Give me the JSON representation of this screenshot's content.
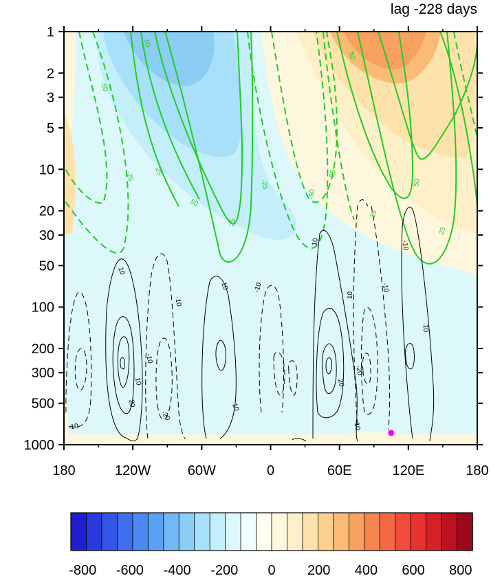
{
  "chart_data": {
    "type": "heatmap",
    "title": "lag -228 days",
    "x_tick_labels": [
      "180",
      "120W",
      "60W",
      "0",
      "60E",
      "120E",
      "180"
    ],
    "x_tick_values": [
      -180,
      -120,
      -60,
      0,
      60,
      120,
      180
    ],
    "y_tick_labels": [
      "1",
      "2",
      "3",
      "5",
      "10",
      "20",
      "30",
      "50",
      "100",
      "200",
      "300",
      "500",
      "1000"
    ],
    "y_tick_values": [
      1,
      2,
      3,
      5,
      10,
      20,
      30,
      50,
      100,
      200,
      300,
      500,
      1000
    ],
    "y_scale": "log",
    "y_inverted": true,
    "xlim": [
      -180,
      180
    ],
    "ylim": [
      1000,
      1
    ],
    "colorbar": {
      "tick_labels": [
        "-800",
        "-600",
        "-400",
        "-200",
        "0",
        "200",
        "400",
        "600",
        "800"
      ],
      "tick_values": [
        -800,
        -600,
        -400,
        -200,
        0,
        200,
        400,
        600,
        800
      ],
      "range": [
        -850,
        850
      ],
      "interval": 50,
      "colors": [
        "#1e1ed0",
        "#2a3ae0",
        "#3455e8",
        "#3f6eee",
        "#4b88f2",
        "#5ba2f4",
        "#72b8f5",
        "#8ccdf6",
        "#a7e0f8",
        "#c3eefa",
        "#dcf8fb",
        "#effdfc",
        "#fffef0",
        "#fef7de",
        "#fdefc8",
        "#fde3ab",
        "#fcd18f",
        "#fbbb76",
        "#f9a161",
        "#f78551",
        "#f56844",
        "#f14b3a",
        "#e73232",
        "#d42027",
        "#bc1220",
        "#9b0a1c"
      ]
    },
    "shaded_regions": [
      {
        "sign": "negative",
        "level": -100,
        "lon_range": [
          -175,
          20
        ],
        "p_range": [
          1,
          300
        ],
        "color": "#dcf8fb"
      },
      {
        "sign": "negative",
        "level": -200,
        "lon_range": [
          -150,
          -20
        ],
        "p_range": [
          1,
          30
        ],
        "color": "#a7e0f8"
      },
      {
        "sign": "negative",
        "level": -300,
        "lon_range": [
          -140,
          -30
        ],
        "p_range": [
          1,
          8
        ],
        "color": "#8ccdf6"
      },
      {
        "sign": "negative",
        "level": -400,
        "lon_range": [
          -125,
          -75
        ],
        "p_range": [
          1,
          2.5
        ],
        "color": "#72b8f5"
      },
      {
        "sign": "positive",
        "level": 100,
        "lon_range": [
          40,
          180
        ],
        "p_range": [
          1,
          30
        ],
        "color": "#fdefc8"
      },
      {
        "sign": "positive",
        "level": 200,
        "lon_range": [
          60,
          175
        ],
        "p_range": [
          1,
          12
        ],
        "color": "#fde3ab"
      },
      {
        "sign": "positive",
        "level": 300,
        "lon_range": [
          75,
          140
        ],
        "p_range": [
          1,
          3
        ],
        "color": "#fbbb76"
      }
    ],
    "green_contours": [
      {
        "level": -50,
        "style": "dashed",
        "lon_range": [
          -180,
          -150
        ],
        "label_lon": -150
      },
      {
        "level": -25,
        "style": "dashed",
        "lon_range": [
          -180,
          -150
        ],
        "label_lon": -124
      },
      {
        "level": 50,
        "style": "solid",
        "lon_range": [
          -115,
          -100
        ],
        "label_lon": -108
      },
      {
        "level": 25,
        "style": "solid",
        "lon_range": [
          -105,
          -60
        ],
        "label_lon": -98
      },
      {
        "level": 50,
        "style": "solid",
        "lon_range": [
          -80,
          -60
        ],
        "label_lon": -65
      },
      {
        "level": 25,
        "style": "solid",
        "lon_range": [
          -70,
          -30
        ],
        "label_lon": -30
      },
      {
        "level": -25,
        "style": "dashed",
        "lon_range": [
          -20,
          40
        ],
        "label_lon": 1
      },
      {
        "level": -50,
        "style": "dashed",
        "lon_range": [
          15,
          45
        ],
        "label_lon": 40
      },
      {
        "level": -25,
        "style": "dashed",
        "lon_range": [
          40,
          70
        ],
        "label_lon": 58
      },
      {
        "level": 50,
        "style": "solid",
        "lon_range": [
          70,
          112
        ],
        "label_lon": 72
      },
      {
        "level": 25,
        "style": "solid",
        "lon_range": [
          90,
          150
        ],
        "label_lon": 92
      },
      {
        "level": 50,
        "style": "solid",
        "lon_range": [
          128,
          150
        ],
        "label_lon": 130
      },
      {
        "level": 25,
        "style": "solid",
        "lon_range": [
          145,
          180
        ],
        "label_lon": 150
      }
    ],
    "black_contours": [
      {
        "level": -10,
        "style": "dashed",
        "center_lon": -165,
        "label_lon": -170
      },
      {
        "level": 10,
        "style": "solid",
        "center_lon": -128,
        "label_lon": -128
      },
      {
        "level": 20,
        "style": "solid",
        "center_lon": -128,
        "label_lon": -120
      },
      {
        "level": -10,
        "style": "dashed",
        "center_lon": -92,
        "label_lon": -96
      },
      {
        "level": -20,
        "style": "dashed",
        "center_lon": -92,
        "label_lon": -90
      },
      {
        "level": 10,
        "style": "solid",
        "center_lon": -45,
        "label_lon": -40
      },
      {
        "level": -10,
        "style": "dashed",
        "center_lon": 0,
        "label_lon": -2
      },
      {
        "level": 10,
        "style": "solid",
        "center_lon": 50,
        "label_lon": 44
      },
      {
        "level": 20,
        "style": "solid",
        "center_lon": 50,
        "label_lon": 52
      },
      {
        "level": -10,
        "style": "dashed",
        "center_lon": 82,
        "label_lon": 76
      },
      {
        "level": -20,
        "style": "dashed",
        "center_lon": 85,
        "label_lon": 76
      },
      {
        "level": -10,
        "style": "dashed",
        "center_lon": 98,
        "label_lon": 100
      },
      {
        "level": 10,
        "style": "solid",
        "center_lon": 120,
        "label_lon": 114
      },
      {
        "level": 10,
        "style": "solid",
        "center_lon": 120,
        "label_lon": 138
      }
    ],
    "marker": {
      "lon": 105,
      "p": 900,
      "color": "#ff00ff"
    }
  }
}
